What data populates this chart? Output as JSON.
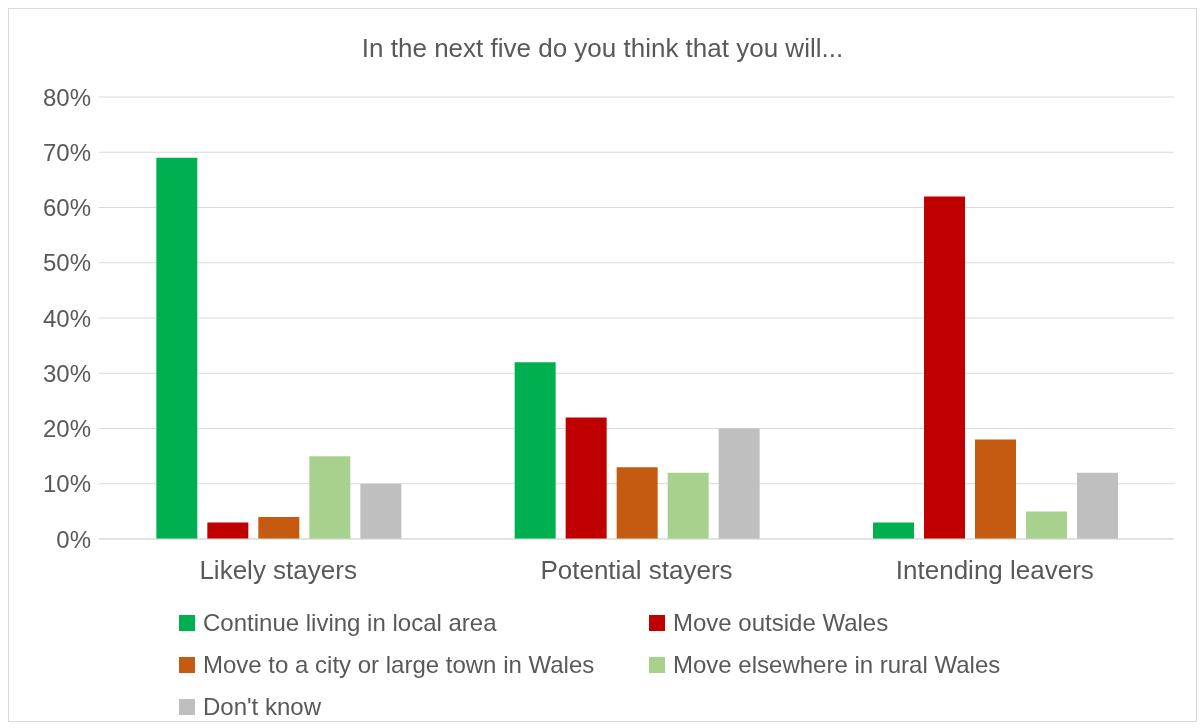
{
  "chart_data": {
    "type": "bar",
    "title": "In the next five do you think that you will...",
    "categories": [
      "Likely stayers",
      "Potential stayers",
      "Intending leavers"
    ],
    "series": [
      {
        "name": "Continue living in local area",
        "color": "#00b050",
        "values": [
          69,
          32,
          3
        ]
      },
      {
        "name": "Move outside Wales",
        "color": "#c00000",
        "values": [
          3,
          22,
          62
        ]
      },
      {
        "name": "Move to a city or large town in Wales",
        "color": "#c55a11",
        "values": [
          4,
          13,
          18
        ]
      },
      {
        "name": "Move elsewhere in rural Wales",
        "color": "#a9d18e",
        "values": [
          15,
          12,
          5
        ]
      },
      {
        "name": "Don't know",
        "color": "#bfbfbf",
        "values": [
          10,
          20,
          12
        ]
      }
    ],
    "ylim": [
      0,
      80
    ],
    "yticks": [
      {
        "value": 0,
        "label": "0%"
      },
      {
        "value": 10,
        "label": "10%"
      },
      {
        "value": 20,
        "label": "20%"
      },
      {
        "value": 30,
        "label": "30%"
      },
      {
        "value": 40,
        "label": "40%"
      },
      {
        "value": 50,
        "label": "50%"
      },
      {
        "value": 60,
        "label": "60%"
      },
      {
        "value": 70,
        "label": "70%"
      },
      {
        "value": 80,
        "label": "80%"
      }
    ],
    "grid": "y",
    "legend": "bottom"
  }
}
